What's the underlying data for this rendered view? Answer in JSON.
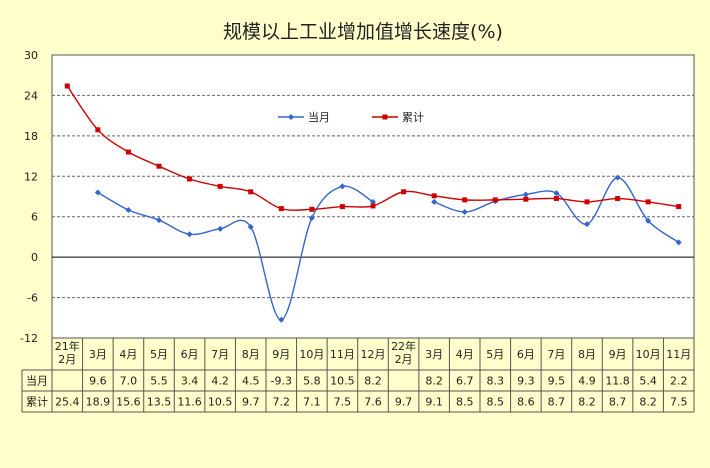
{
  "chart_data": {
    "type": "line",
    "title": "规模以上工业增加值增长速度(%)",
    "xlabel": "",
    "ylabel": "",
    "ylim": [
      -12,
      30
    ],
    "yticks": [
      -12,
      -6,
      0,
      6,
      12,
      18,
      24,
      30
    ],
    "grid": true,
    "legend_position": "top-center",
    "categories": [
      "21年2月",
      "3月",
      "4月",
      "5月",
      "6月",
      "7月",
      "8月",
      "9月",
      "10月",
      "11月",
      "12月",
      "22年2月",
      "3月",
      "4月",
      "5月",
      "6月",
      "7月",
      "8月",
      "9月",
      "10月",
      "11月"
    ],
    "category_lines": [
      [
        "21年",
        "2月"
      ],
      [
        "3月"
      ],
      [
        "4月"
      ],
      [
        "5月"
      ],
      [
        "6月"
      ],
      [
        "7月"
      ],
      [
        "8月"
      ],
      [
        "9月"
      ],
      [
        "10月"
      ],
      [
        "11月"
      ],
      [
        "12月"
      ],
      [
        "22年",
        "2月"
      ],
      [
        "3月"
      ],
      [
        "4月"
      ],
      [
        "5月"
      ],
      [
        "6月"
      ],
      [
        "7月"
      ],
      [
        "8月"
      ],
      [
        "9月"
      ],
      [
        "10月"
      ],
      [
        "11月"
      ]
    ],
    "series": [
      {
        "name": "当月",
        "color": "#3366cc",
        "marker": "diamond",
        "values": [
          null,
          9.6,
          7.0,
          5.5,
          3.4,
          4.2,
          4.5,
          -9.3,
          5.8,
          10.5,
          8.2,
          null,
          8.2,
          6.7,
          8.3,
          9.3,
          9.5,
          4.9,
          11.8,
          5.4,
          2.2
        ],
        "labels": [
          "",
          "9.6",
          "7.0",
          "5.5",
          "3.4",
          "4.2",
          "4.5",
          "-9.3",
          "5.8",
          "10.5",
          "8.2",
          "",
          "8.2",
          "6.7",
          "8.3",
          "9.3",
          "9.5",
          "4.9",
          "11.8",
          "5.4",
          "2.2"
        ]
      },
      {
        "name": "累计",
        "color": "#cc0000",
        "marker": "square",
        "values": [
          25.4,
          18.9,
          15.6,
          13.5,
          11.6,
          10.5,
          9.7,
          7.2,
          7.1,
          7.5,
          7.6,
          9.7,
          9.1,
          8.5,
          8.5,
          8.6,
          8.7,
          8.2,
          8.7,
          8.2,
          7.5
        ],
        "labels": [
          "25.4",
          "18.9",
          "15.6",
          "13.5",
          "11.6",
          "10.5",
          "9.7",
          "7.2",
          "7.1",
          "7.5",
          "7.6",
          "9.7",
          "9.1",
          "8.5",
          "8.5",
          "8.6",
          "8.7",
          "8.2",
          "8.7",
          "8.2",
          "7.5"
        ]
      }
    ]
  }
}
